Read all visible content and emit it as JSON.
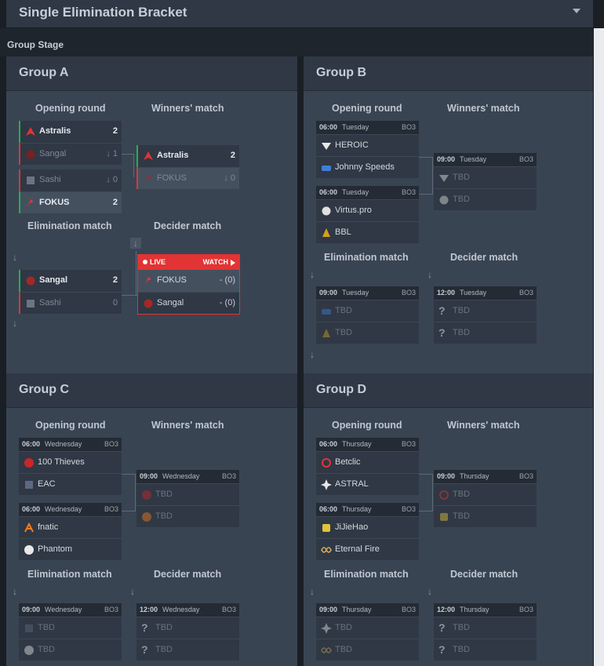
{
  "header": {
    "title": "Single Elimination Bracket"
  },
  "stage": {
    "title": "Group Stage"
  },
  "labels": {
    "opening": "Opening round",
    "winners": "Winners' match",
    "elimination": "Elimination match",
    "decider": "Decider match",
    "bo": "BO3",
    "tbd": "TBD",
    "live": "LIVE",
    "watch": "WATCH"
  },
  "groups": {
    "a": {
      "title": "Group A",
      "opening1": {
        "team1": "Astralis",
        "score1": "2",
        "team2": "Sangal",
        "score2": "1"
      },
      "opening2": {
        "team1": "Sashi",
        "score1": "0",
        "team2": "FOKUS",
        "score2": "2"
      },
      "winners": {
        "team1": "Astralis",
        "score1": "2",
        "team2": "FOKUS",
        "score2": "0"
      },
      "elimination": {
        "team1": "Sangal",
        "score1": "2",
        "team2": "Sashi",
        "score2": "0"
      },
      "decider": {
        "team1": "FOKUS",
        "score1": "- (0)",
        "team2": "Sangal",
        "score2": "- (0)"
      }
    },
    "b": {
      "title": "Group B",
      "opening1": {
        "time": "06:00",
        "day": "Tuesday",
        "team1": "HEROIC",
        "team2": "Johnny Speeds"
      },
      "opening2": {
        "time": "06:00",
        "day": "Tuesday",
        "team1": "Virtus.pro",
        "team2": "BBL"
      },
      "winners": {
        "time": "09:00",
        "day": "Tuesday"
      },
      "elimination": {
        "time": "09:00",
        "day": "Tuesday"
      },
      "decider": {
        "time": "12:00",
        "day": "Tuesday"
      }
    },
    "c": {
      "title": "Group C",
      "opening1": {
        "time": "06:00",
        "day": "Wednesday",
        "team1": "100 Thieves",
        "team2": "EAC"
      },
      "opening2": {
        "time": "06:00",
        "day": "Wednesday",
        "team1": "fnatic",
        "team2": "Phantom"
      },
      "winners": {
        "time": "09:00",
        "day": "Wednesday"
      },
      "elimination": {
        "time": "09:00",
        "day": "Wednesday"
      },
      "decider": {
        "time": "12:00",
        "day": "Wednesday"
      }
    },
    "d": {
      "title": "Group D",
      "opening1": {
        "time": "06:00",
        "day": "Thursday",
        "team1": "Betclic",
        "team2": "ASTRAL"
      },
      "opening2": {
        "time": "06:00",
        "day": "Thursday",
        "team1": "JiJieHao",
        "team2": "Eternal Fire"
      },
      "winners": {
        "time": "09:00",
        "day": "Thursday"
      },
      "elimination": {
        "time": "09:00",
        "day": "Thursday"
      },
      "decider": {
        "time": "12:00",
        "day": "Thursday"
      }
    }
  },
  "colors": {
    "win": "#22b14c",
    "lose": "#d9383a",
    "live": "#e23434"
  }
}
